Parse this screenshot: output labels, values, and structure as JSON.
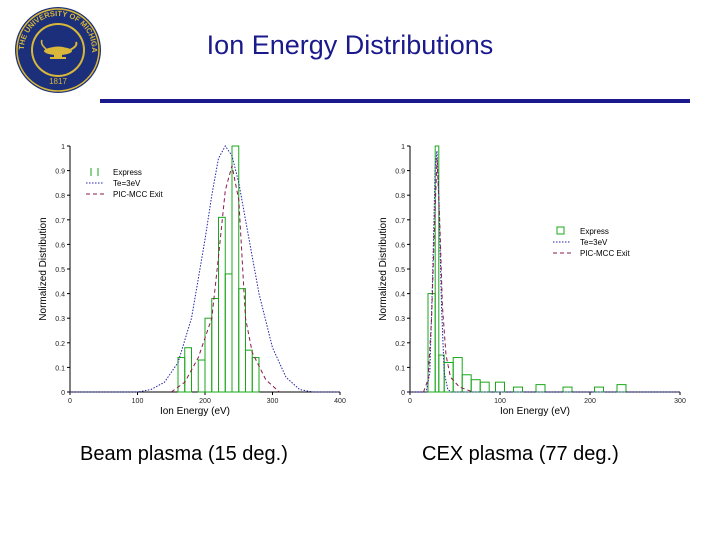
{
  "seal": {
    "ring_text": "THE UNIVERSITY OF MICHIGAN",
    "year": "1817",
    "colors": {
      "blue": "#1b2f7a",
      "gold": "#d8b73a"
    }
  },
  "slide": {
    "title": "Ion Energy Distributions",
    "captions": [
      "Beam plasma (15 deg.)",
      "CEX plasma (77 deg.)"
    ]
  },
  "colors": {
    "title": "#1a1a8c",
    "express": "#1aa81a",
    "te": "#2323a8",
    "pic": "#8b1a4d"
  },
  "chart_data": [
    {
      "type": "bar",
      "title": "",
      "xlabel": "Ion Energy (eV)",
      "ylabel": "Normalized Distribution",
      "xlim": [
        0,
        400
      ],
      "ylim": [
        0,
        1
      ],
      "xticks": [
        "0",
        "100",
        "200",
        "300",
        "400"
      ],
      "yticks": [
        "0",
        "0.1",
        "0.2",
        "0.3",
        "0.4",
        "0.5",
        "0.6",
        "0.7",
        "0.8",
        "0.9",
        "1"
      ],
      "legend": {
        "position": "top-left",
        "entries": [
          "Express",
          "Te=3eV",
          "PIC-MCC Exit"
        ]
      },
      "series": [
        {
          "name": "Express",
          "style": "histogram",
          "bins": [
            {
              "x0": 160,
              "x1": 170,
              "y": 0.14
            },
            {
              "x0": 170,
              "x1": 180,
              "y": 0.18
            },
            {
              "x0": 190,
              "x1": 200,
              "y": 0.13
            },
            {
              "x0": 200,
              "x1": 210,
              "y": 0.3
            },
            {
              "x0": 210,
              "x1": 220,
              "y": 0.38
            },
            {
              "x0": 220,
              "x1": 230,
              "y": 0.71
            },
            {
              "x0": 230,
              "x1": 240,
              "y": 0.48
            },
            {
              "x0": 240,
              "x1": 250,
              "y": 1.0
            },
            {
              "x0": 250,
              "x1": 260,
              "y": 0.42
            },
            {
              "x0": 260,
              "x1": 270,
              "y": 0.17
            },
            {
              "x0": 270,
              "x1": 280,
              "y": 0.14
            }
          ]
        },
        {
          "name": "Te=3eV",
          "style": "line",
          "x": [
            0,
            100,
            120,
            140,
            160,
            180,
            200,
            210,
            220,
            230,
            240,
            250,
            260,
            280,
            300,
            320,
            340,
            360,
            400
          ],
          "y": [
            0,
            0,
            0.01,
            0.04,
            0.12,
            0.3,
            0.62,
            0.8,
            0.95,
            1.0,
            0.96,
            0.85,
            0.7,
            0.4,
            0.18,
            0.06,
            0.01,
            0,
            0
          ]
        },
        {
          "name": "PIC-MCC Exit",
          "style": "dashed",
          "x": [
            150,
            170,
            190,
            200,
            210,
            220,
            230,
            240,
            250,
            260,
            270,
            290,
            310
          ],
          "y": [
            0,
            0.04,
            0.14,
            0.22,
            0.3,
            0.55,
            0.82,
            0.92,
            0.78,
            0.3,
            0.16,
            0.05,
            0
          ]
        }
      ]
    },
    {
      "type": "bar",
      "title": "",
      "xlabel": "Ion Energy (eV)",
      "ylabel": "Normalized Distribution",
      "xlim": [
        0,
        300
      ],
      "ylim": [
        0,
        1
      ],
      "xticks": [
        "0",
        "100",
        "200",
        "300"
      ],
      "yticks": [
        "0",
        "0.1",
        "0.2",
        "0.3",
        "0.4",
        "0.5",
        "0.6",
        "0.7",
        "0.8",
        "0.9",
        "1"
      ],
      "legend": {
        "position": "top-right",
        "entries": [
          "Express",
          "Te=3eV",
          "PIC-MCC Exit"
        ]
      },
      "series": [
        {
          "name": "Express",
          "style": "histogram",
          "bins": [
            {
              "x0": 20,
              "x1": 28,
              "y": 0.4
            },
            {
              "x0": 28,
              "x1": 32,
              "y": 1.0
            },
            {
              "x0": 32,
              "x1": 38,
              "y": 0.15
            },
            {
              "x0": 38,
              "x1": 48,
              "y": 0.12
            },
            {
              "x0": 48,
              "x1": 58,
              "y": 0.14
            },
            {
              "x0": 58,
              "x1": 68,
              "y": 0.07
            },
            {
              "x0": 68,
              "x1": 78,
              "y": 0.05
            },
            {
              "x0": 78,
              "x1": 88,
              "y": 0.04
            },
            {
              "x0": 95,
              "x1": 105,
              "y": 0.04
            },
            {
              "x0": 115,
              "x1": 125,
              "y": 0.02
            },
            {
              "x0": 140,
              "x1": 150,
              "y": 0.03
            },
            {
              "x0": 170,
              "x1": 180,
              "y": 0.02
            },
            {
              "x0": 205,
              "x1": 215,
              "y": 0.02
            },
            {
              "x0": 230,
              "x1": 240,
              "y": 0.03
            }
          ]
        },
        {
          "name": "Te=3eV",
          "style": "line",
          "x": [
            0,
            18,
            22,
            25,
            28,
            30,
            32,
            35,
            38,
            42,
            46,
            300
          ],
          "y": [
            0,
            0,
            0.08,
            0.45,
            0.92,
            0.98,
            0.8,
            0.35,
            0.08,
            0.01,
            0,
            0
          ]
        },
        {
          "name": "PIC-MCC Exit",
          "style": "dashed",
          "x": [
            15,
            20,
            24,
            27,
            30,
            33,
            36,
            40,
            45,
            55,
            70
          ],
          "y": [
            0,
            0.05,
            0.3,
            0.65,
            0.95,
            0.7,
            0.35,
            0.15,
            0.06,
            0.02,
            0
          ]
        }
      ]
    }
  ]
}
